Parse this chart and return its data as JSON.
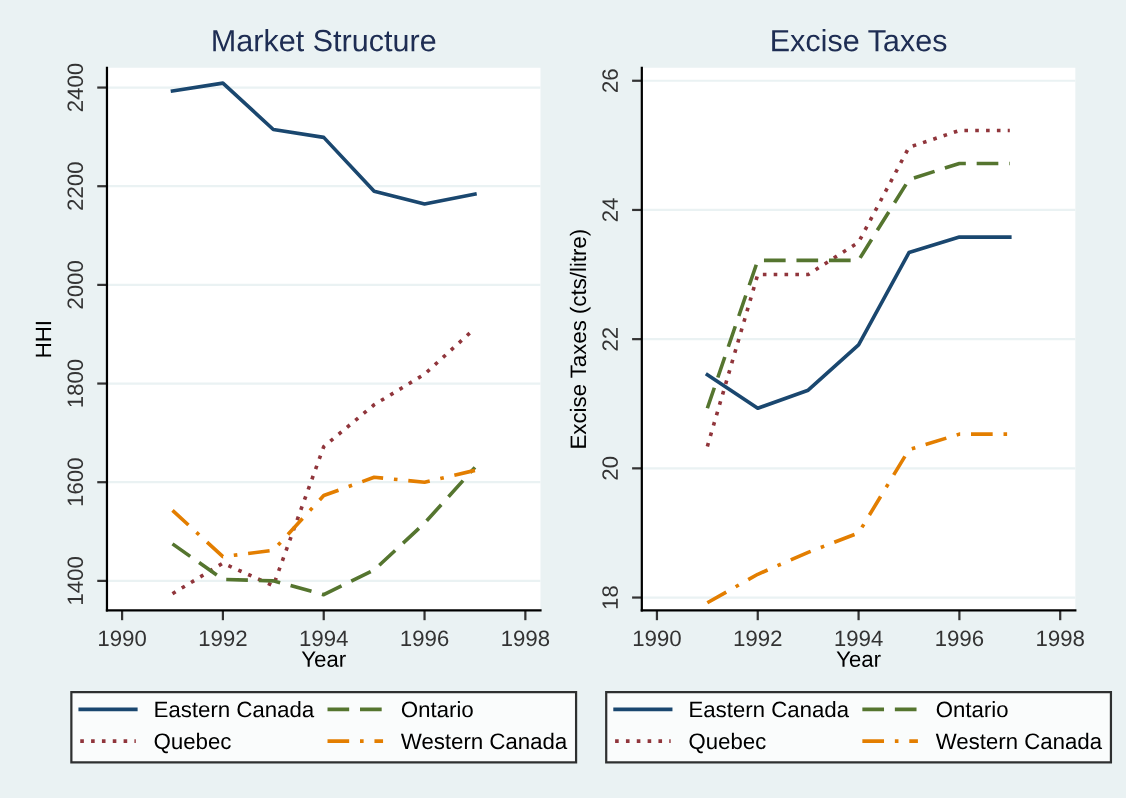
{
  "chart_data": [
    {
      "type": "line",
      "title": "Market Structure",
      "xlabel": "Year",
      "ylabel": "HHI",
      "x": [
        1991,
        1992,
        1993,
        1994,
        1995,
        1996,
        1997
      ],
      "xlim": [
        1989.7,
        1998.3
      ],
      "xticks": [
        1990,
        1992,
        1994,
        1996,
        1998
      ],
      "ylim": [
        1340,
        2440
      ],
      "yticks": [
        1400,
        1600,
        1800,
        2000,
        2200,
        2400
      ],
      "grid": "y",
      "legend": "bottom",
      "marker": "none",
      "series": [
        {
          "name": "Eastern Canada",
          "color": "#1a476f",
          "line_style": "solid",
          "values": [
            2393,
            2409,
            2315,
            2299,
            2190,
            2164,
            2184
          ]
        },
        {
          "name": "Quebec",
          "color": "#90353b",
          "line_style": "dotted",
          "values": [
            1374,
            1436,
            1390,
            1672,
            1757,
            1819,
            1912
          ]
        },
        {
          "name": "Ontario",
          "color": "#55752f",
          "line_style": "dashed",
          "values": [
            1475,
            1403,
            1400,
            1372,
            1422,
            1517,
            1630
          ]
        },
        {
          "name": "Western Canada",
          "color": "#e37e00",
          "line_style": "dashdot",
          "values": [
            1543,
            1449,
            1462,
            1573,
            1610,
            1600,
            1624
          ]
        }
      ]
    },
    {
      "type": "line",
      "title": "Excise Taxes",
      "xlabel": "Year",
      "ylabel": "Excise Taxes (cts/litre)",
      "x": [
        1991,
        1992,
        1993,
        1994,
        1995,
        1996,
        1997
      ],
      "xlim": [
        1989.7,
        1998.3
      ],
      "xticks": [
        1990,
        1992,
        1994,
        1996,
        1998
      ],
      "ylim": [
        17.8,
        26.2
      ],
      "yticks": [
        18,
        20,
        22,
        24,
        26
      ],
      "grid": "y",
      "legend": "bottom",
      "marker": "none",
      "series": [
        {
          "name": "Eastern Canada",
          "color": "#1a476f",
          "line_style": "solid",
          "values": [
            21.45,
            20.93,
            21.21,
            21.91,
            23.34,
            23.58,
            23.58
          ]
        },
        {
          "name": "Quebec",
          "color": "#90353b",
          "line_style": "dotted",
          "values": [
            20.34,
            23.0,
            23.0,
            23.5,
            24.97,
            25.23,
            25.23
          ]
        },
        {
          "name": "Ontario",
          "color": "#55752f",
          "line_style": "dashed",
          "values": [
            20.93,
            23.22,
            23.22,
            23.22,
            24.47,
            24.72,
            24.72
          ]
        },
        {
          "name": "Western Canada",
          "color": "#e37e00",
          "line_style": "dashdot",
          "values": [
            17.92,
            18.36,
            18.7,
            19.0,
            20.29,
            20.53,
            20.53
          ]
        }
      ]
    }
  ]
}
